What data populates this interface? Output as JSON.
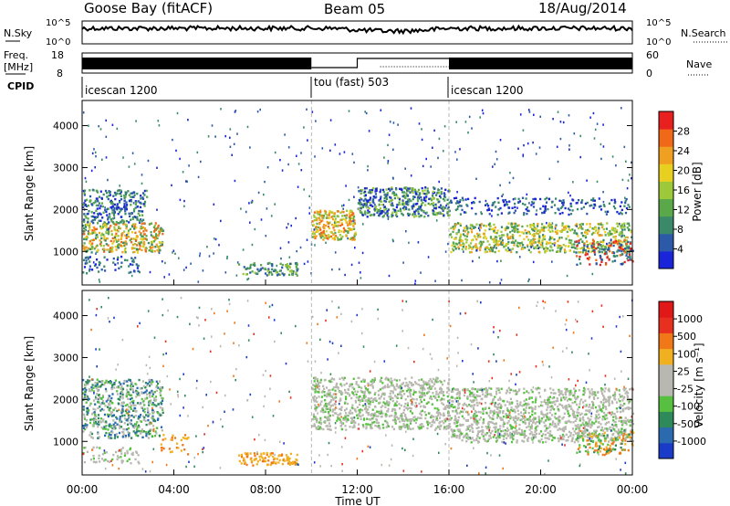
{
  "header": {
    "station": "Goose Bay (fitACF)",
    "beam": "Beam 05",
    "date": "18/Aug/2014"
  },
  "top_panels": {
    "nsky_label": "N.Sky",
    "nsky_ticks": [
      "10^5",
      "10^0"
    ],
    "nsearch_label": "N.Search",
    "nsearch_ticks": [
      "10^5",
      "10^0"
    ],
    "freq_label_1": "Freq.",
    "freq_label_2": "[MHz]",
    "freq_ticks": [
      "18",
      "8"
    ],
    "nave_label": "Nave",
    "nave_ticks": [
      "60",
      "0"
    ],
    "cpid_label": "CPID",
    "cpid_segments": [
      {
        "name": "icescan 1200",
        "start_hour": 0,
        "end_hour": 10
      },
      {
        "name": "tou (fast) 503",
        "start_hour": 10,
        "end_hour": 16
      },
      {
        "name": "icescan 1200",
        "start_hour": 16,
        "end_hour": 24
      }
    ]
  },
  "chart_data": [
    {
      "type": "heatmap",
      "ylabel": "Slant Range [km]",
      "yticks": [
        "1000",
        "2000",
        "3000",
        "4000"
      ],
      "ylim": [
        200,
        4600
      ],
      "xlim": [
        0,
        24
      ],
      "colorbar_label": "Power [dB]",
      "colorbar_ticks": [
        "4",
        "8",
        "12",
        "16",
        "20",
        "24",
        "28"
      ],
      "colorbar_colors": [
        "#1a24d8",
        "#2c5aa8",
        "#3a8a6a",
        "#5aa84a",
        "#9cc83a",
        "#e8d020",
        "#f0a020",
        "#f06818",
        "#e82020"
      ]
    },
    {
      "type": "heatmap",
      "ylabel": "Slant Range [km]",
      "yticks": [
        "1000",
        "2000",
        "3000",
        "4000"
      ],
      "ylim": [
        200,
        4600
      ],
      "xlim": [
        0,
        24
      ],
      "xticks": [
        "00:00",
        "04:00",
        "08:00",
        "12:00",
        "16:00",
        "20:00",
        "00:00"
      ],
      "xlabel": "Time UT",
      "colorbar_label": "Velocity [m s⁻¹]",
      "colorbar_ticks": [
        "1000",
        "500",
        "100",
        "25",
        "-25",
        "-100",
        "-500",
        "-1000"
      ],
      "colorbar_colors": [
        "#1a3ac8",
        "#2c6ab0",
        "#2e8a5a",
        "#58c040",
        "#b8b8b0",
        "#b8b8b0",
        "#f0b020",
        "#f07818",
        "#e83020",
        "#e01818"
      ]
    }
  ]
}
